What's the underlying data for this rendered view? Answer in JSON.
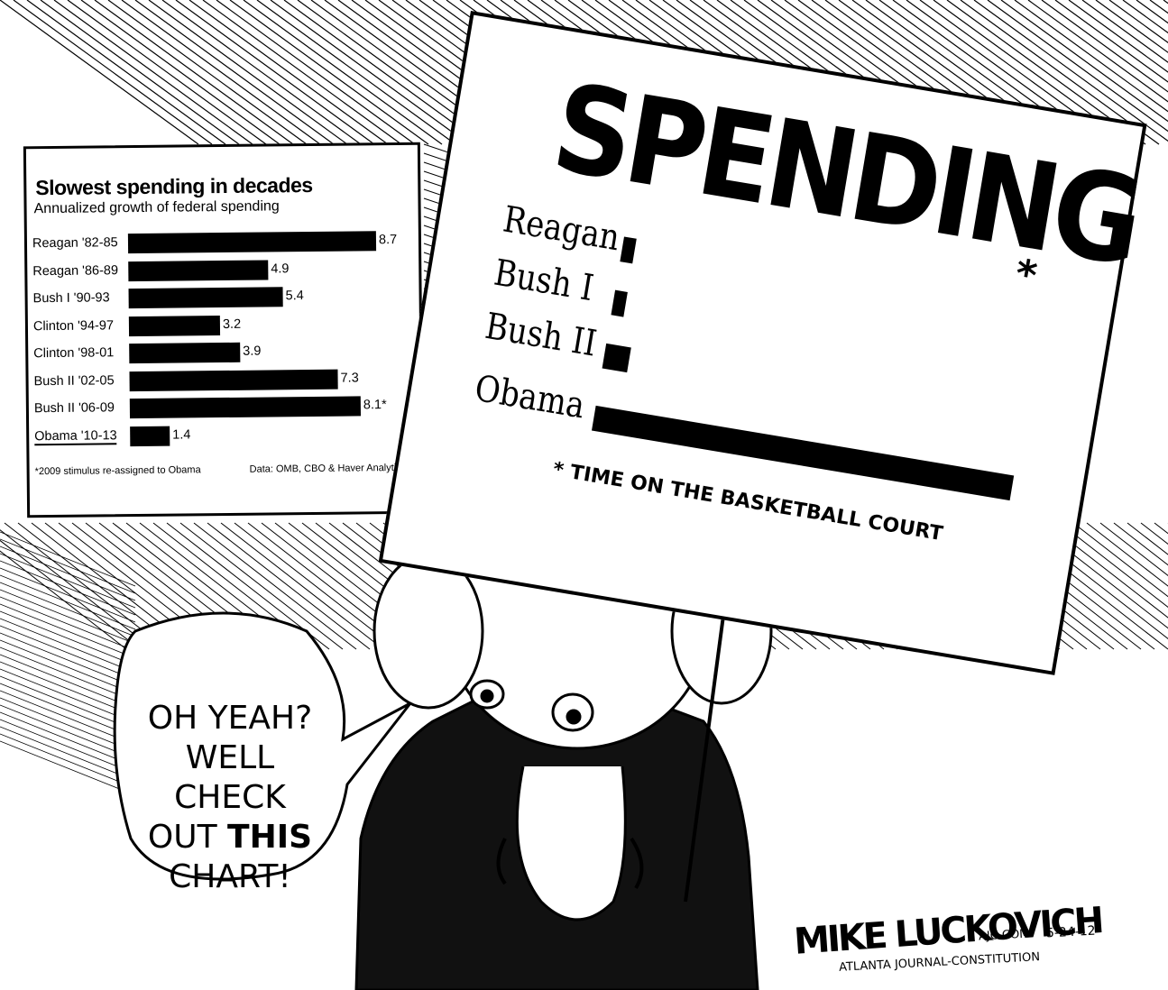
{
  "left_chart": {
    "title": "Slowest spending in decades",
    "subtitle": "Annualized growth of federal spending",
    "footnote": "*2009 stimulus re-assigned to Obama",
    "source": "Data: OMB, CBO & Haver Analytics"
  },
  "sign": {
    "title": "SPENDING",
    "title_asterisk": "*",
    "footnote": "* TIME ON THE BASKETBALL COURT"
  },
  "bubble": {
    "line1": "OH YEAH?",
    "line2": "WELL CHECK",
    "line3_prefix": "OUT ",
    "line3_bold": "THIS",
    "line4": "CHART!"
  },
  "signature": {
    "name": "MIKE LUCKOVICH",
    "site": "AJC.COM",
    "date": "5-24-12",
    "paper": "ATLANTA JOURNAL-CONSTITUTION"
  },
  "chart_data": [
    {
      "type": "bar",
      "title": "Slowest spending in decades",
      "subtitle": "Annualized growth of federal spending",
      "orientation": "horizontal",
      "categories": [
        "Reagan '82-85",
        "Reagan '86-89",
        "Bush I '90-93",
        "Clinton '94-97",
        "Clinton '98-01",
        "Bush II '02-05",
        "Bush II '06-09",
        "Obama '10-13"
      ],
      "values": [
        8.7,
        4.9,
        5.4,
        3.2,
        3.9,
        7.3,
        8.1,
        1.4
      ],
      "value_labels": [
        "8.7",
        "4.9",
        "5.4",
        "3.2",
        "3.9",
        "7.3",
        "8.1*",
        "1.4"
      ],
      "underlined_category": "Obama",
      "xlim": [
        0,
        8.7
      ]
    },
    {
      "type": "bar",
      "title": "SPENDING",
      "orientation": "horizontal",
      "categories": [
        "Reagan",
        "Bush I",
        "Bush II",
        "Obama"
      ],
      "values": [
        0.03,
        0.03,
        0.06,
        1.0
      ],
      "value_scale": "relative",
      "footnote": "* TIME ON THE BASKETBALL COURT"
    }
  ]
}
